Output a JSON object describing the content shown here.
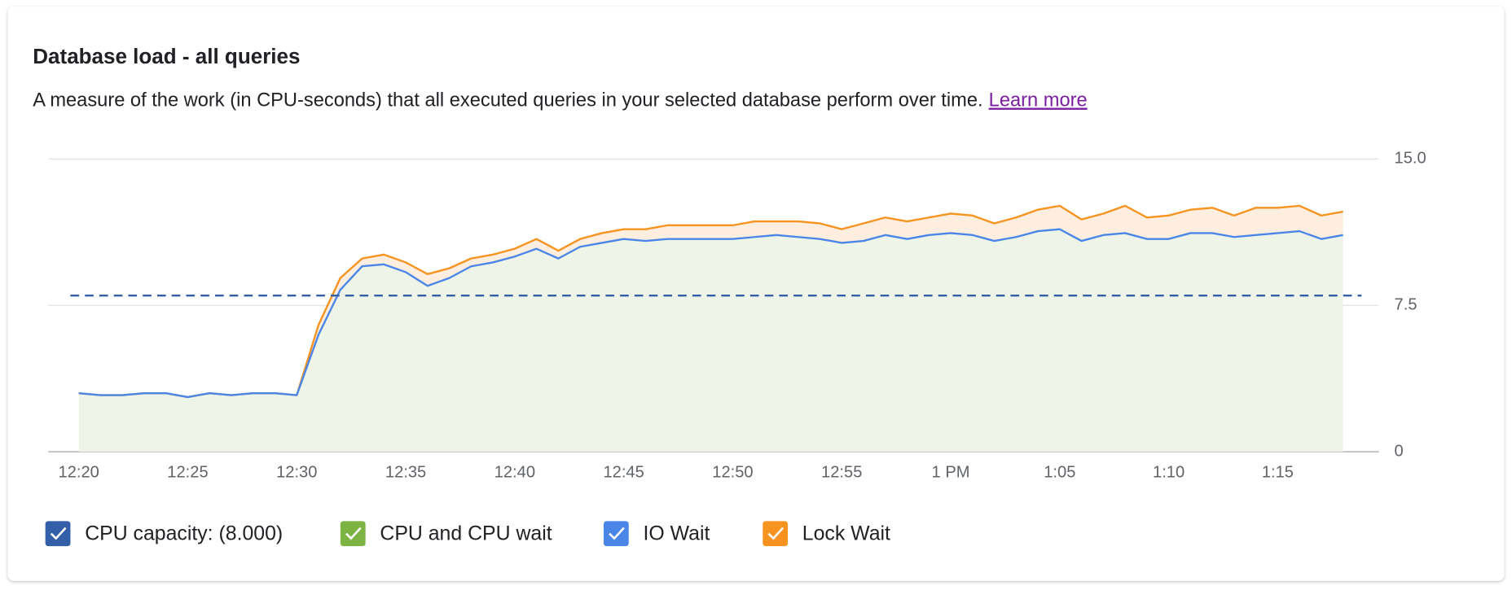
{
  "header": {
    "title": "Database load - all queries",
    "subtitle": "A measure of the work (in CPU-seconds) that all executed queries in your selected database perform over time.",
    "link": "Learn more"
  },
  "chart_data": {
    "type": "stacked-area",
    "x": [
      740,
      741,
      742,
      743,
      744,
      745,
      746,
      747,
      748,
      749,
      750,
      751,
      752,
      753,
      754,
      755,
      756,
      757,
      758,
      759,
      760,
      761,
      762,
      763,
      764,
      765,
      766,
      767,
      768,
      769,
      770,
      771,
      772,
      773,
      774,
      775,
      776,
      777,
      778,
      779,
      780,
      781,
      782,
      783,
      784,
      785,
      786,
      787,
      788,
      789,
      790,
      791,
      792,
      793,
      794,
      795,
      796,
      797,
      798
    ],
    "xlim": [
      738.6,
      799.2
    ],
    "xticks": [
      {
        "value": 740,
        "label": "12:20"
      },
      {
        "value": 745,
        "label": "12:25"
      },
      {
        "value": 750,
        "label": "12:30"
      },
      {
        "value": 755,
        "label": "12:35"
      },
      {
        "value": 760,
        "label": "12:40"
      },
      {
        "value": 765,
        "label": "12:45"
      },
      {
        "value": 770,
        "label": "12:50"
      },
      {
        "value": 775,
        "label": "12:55"
      },
      {
        "value": 780,
        "label": "1 PM"
      },
      {
        "value": 785,
        "label": "1:05"
      },
      {
        "value": 790,
        "label": "1:10"
      },
      {
        "value": 795,
        "label": "1:15"
      }
    ],
    "ylim": [
      0,
      15
    ],
    "yticks": [
      0,
      7.5,
      {
        "value": 15,
        "label": "15.0"
      }
    ],
    "grid": true,
    "capacity": {
      "name": "CPU capacity: (8.000)",
      "value": 8,
      "color": "#335ea8"
    },
    "series": [
      {
        "name": "CPU and CPU wait",
        "color": "#7cb342",
        "fill": "#eef5e8",
        "values": [
          3.0,
          2.9,
          2.9,
          3.0,
          3.0,
          2.8,
          3.0,
          2.9,
          3.0,
          3.0,
          2.9,
          6.0,
          8.3,
          9.5,
          9.6,
          9.2,
          8.5,
          8.9,
          9.5,
          9.7,
          10.0,
          10.4,
          9.9,
          10.5,
          10.7,
          10.9,
          10.8,
          10.9,
          10.9,
          10.9,
          10.9,
          11.0,
          11.1,
          11.0,
          10.9,
          10.7,
          10.8,
          11.1,
          10.9,
          11.1,
          11.2,
          11.1,
          10.8,
          11.0,
          11.3,
          11.4,
          10.8,
          11.1,
          11.2,
          10.9,
          10.9,
          11.2,
          11.2,
          11.0,
          11.1,
          11.2,
          11.3,
          10.9,
          11.1
        ]
      },
      {
        "name": "IO Wait",
        "color": "#4a86e8",
        "values": [
          0,
          0,
          0,
          0,
          0,
          0,
          0,
          0,
          0,
          0,
          0,
          0,
          0,
          0,
          0,
          0,
          0,
          0,
          0,
          0,
          0,
          0,
          0,
          0,
          0,
          0,
          0,
          0,
          0,
          0,
          0,
          0,
          0,
          0,
          0,
          0,
          0,
          0,
          0,
          0,
          0,
          0,
          0,
          0,
          0,
          0,
          0,
          0,
          0,
          0,
          0,
          0,
          0,
          0,
          0,
          0,
          0,
          0,
          0
        ]
      },
      {
        "name": "Lock Wait",
        "color": "#f7931e",
        "fill": "#fdeee0",
        "values": [
          0,
          0,
          0,
          0,
          0,
          0,
          0,
          0,
          0,
          0,
          0,
          0.5,
          0.6,
          0.4,
          0.5,
          0.5,
          0.6,
          0.5,
          0.4,
          0.4,
          0.4,
          0.5,
          0.4,
          0.4,
          0.5,
          0.5,
          0.6,
          0.7,
          0.7,
          0.7,
          0.7,
          0.8,
          0.7,
          0.8,
          0.8,
          0.7,
          0.9,
          0.9,
          0.9,
          0.9,
          1.0,
          1.0,
          0.9,
          1.0,
          1.1,
          1.2,
          1.1,
          1.1,
          1.4,
          1.1,
          1.2,
          1.2,
          1.3,
          1.1,
          1.4,
          1.3,
          1.3,
          1.2,
          1.2
        ]
      }
    ]
  }
}
